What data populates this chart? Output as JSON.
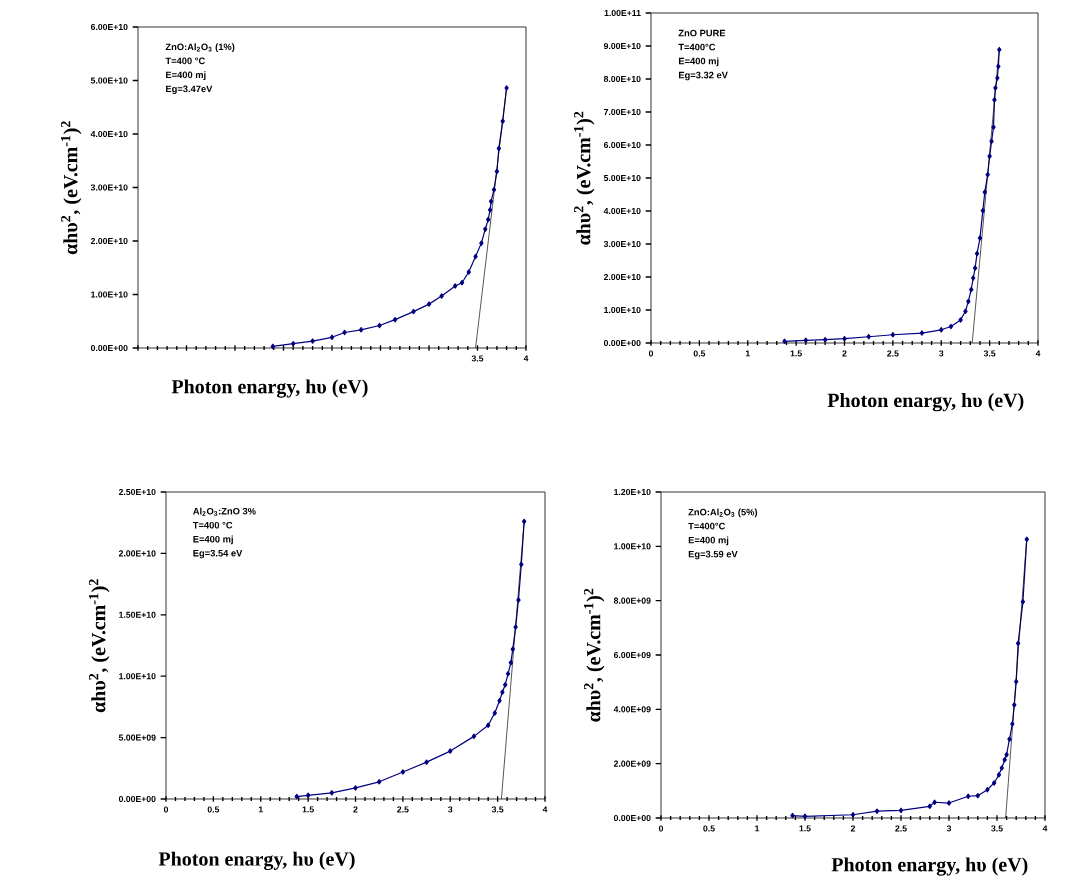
{
  "chart_data": [
    {
      "type": "line",
      "xlabel": "Photon enargy, hυ (eV)",
      "ylabel": "αhυ$^{2}$, (eV.cm$^{-1}$)$^{2}$",
      "marker": "diamond",
      "annotations": [
        "ZnO:Al$_{2}$O$_{3}$ (1%)",
        "T=400 °C",
        "E=400 mj",
        "Eg=3.47eV"
      ],
      "xlim": [
        0,
        4
      ],
      "ylim": [
        0,
        60000000000.0
      ],
      "xticks": [
        {
          "value": 0,
          "label": null
        },
        {
          "value": 0.5,
          "label": null
        },
        {
          "value": 1,
          "label": null
        },
        {
          "value": 1.5,
          "label": null
        },
        {
          "value": 2,
          "label": null
        },
        {
          "value": 2.5,
          "label": null
        },
        {
          "value": 3,
          "label": null
        },
        3.5,
        4
      ],
      "yticks": [
        {
          "value": 0,
          "label": "0.00E+00"
        },
        {
          "value": 10000000000.0,
          "label": "1.00E+10"
        },
        {
          "value": 20000000000.0,
          "label": "2.00E+10"
        },
        {
          "value": 30000000000.0,
          "label": "3.00E+10"
        },
        {
          "value": 40000000000.0,
          "label": "4.00E+10"
        },
        {
          "value": 50000000000.0,
          "label": "5.00E+10"
        },
        {
          "value": 60000000000.0,
          "label": "6.00E+10"
        }
      ],
      "series": [
        {
          "color": "#000080",
          "x": [
            1.39,
            1.6,
            1.8,
            2.0,
            2.13,
            2.3,
            2.49,
            2.65,
            2.84,
            3.0,
            3.13,
            3.27,
            3.34,
            3.41,
            3.48,
            3.54,
            3.58,
            3.61,
            3.63,
            3.64,
            3.67,
            3.7,
            3.72,
            3.76,
            3.8
          ],
          "values": [
            300000000.0,
            800000000.0,
            1300000000.0,
            2000000000.0,
            2900000000.0,
            3400000000.0,
            4200000000.0,
            5300000000.0,
            6800000000.0,
            8200000000.0,
            9700000000.0,
            11600000000.0,
            12200000000.0,
            14200000000.0,
            17100000000.0,
            19600000000.0,
            22200000000.0,
            24000000000.0,
            25800000000.0,
            27400000000.0,
            29600000000.0,
            33000000000.0,
            37300000000.0,
            42400000000.0,
            48600000000.0
          ]
        },
        {
          "type": "line",
          "color": "#000000",
          "marker": "none",
          "x": [
            3.48,
            3.8
          ],
          "values": [
            0,
            48700000000.0
          ]
        }
      ]
    },
    {
      "type": "line",
      "xlabel": "Photon enargy, hυ (eV)",
      "ylabel": "αhυ$^{2}$, (eV.cm$^{-1}$)$^{2}$",
      "marker": "diamond",
      "annotations": [
        "ZnO PURE",
        "T=400°C",
        "E=400 mj",
        "Eg=3.32 eV"
      ],
      "xlim": [
        0,
        4
      ],
      "ylim": [
        0,
        100000000000.0
      ],
      "xticks": [
        0,
        0.5,
        1,
        1.5,
        2,
        2.5,
        3,
        3.5,
        4
      ],
      "yticks": [
        {
          "value": 0,
          "label": "0.00E+00"
        },
        {
          "value": 10000000000.0,
          "label": "1.00E+10"
        },
        {
          "value": 20000000000.0,
          "label": "2.00E+10"
        },
        {
          "value": 30000000000.0,
          "label": "3.00E+10"
        },
        {
          "value": 40000000000.0,
          "label": "4.00E+10"
        },
        {
          "value": 50000000000.0,
          "label": "5.00E+10"
        },
        {
          "value": 60000000000.0,
          "label": "6.00E+10"
        },
        {
          "value": 70000000000.0,
          "label": "7.00E+10"
        },
        {
          "value": 80000000000.0,
          "label": "8.00E+10"
        },
        {
          "value": 90000000000.0,
          "label": "9.00E+10"
        },
        {
          "value": 100000000000.0,
          "label": "1.00E+11"
        }
      ],
      "series": [
        {
          "color": "#000080",
          "x": [
            1.38,
            1.6,
            1.8,
            2.0,
            2.25,
            2.5,
            2.8,
            3.0,
            3.1,
            3.2,
            3.25,
            3.28,
            3.31,
            3.33,
            3.35,
            3.37,
            3.4,
            3.43,
            3.45,
            3.48,
            3.5,
            3.52,
            3.54,
            3.55,
            3.56,
            3.58,
            3.59,
            3.6
          ],
          "values": [
            500000000.0,
            800000000.0,
            1000000000.0,
            1300000000.0,
            1900000000.0,
            2500000000.0,
            3000000000.0,
            4000000000.0,
            5000000000.0,
            7000000000.0,
            9600000000.0,
            12600000000.0,
            16200000000.0,
            19700000000.0,
            22700000000.0,
            27100000000.0,
            31800000000.0,
            40100000000.0,
            45700000000.0,
            51000000000.0,
            56600000000.0,
            61100000000.0,
            65400000000.0,
            73700000000.0,
            77300000000.0,
            80300000000.0,
            83800000000.0,
            88900000000.0
          ]
        },
        {
          "type": "line",
          "color": "#000000",
          "marker": "none",
          "x": [
            3.32,
            3.6
          ],
          "values": [
            0,
            89500000000.0
          ]
        }
      ]
    },
    {
      "type": "line",
      "xlabel": "Photon enargy, hυ (eV)",
      "ylabel": "αhυ$^{2}$, (eV.cm$^{-1}$)$^{2}$",
      "marker": "diamond",
      "annotations": [
        "Al$_{2}$O$_{3}$:ZnO 3%",
        "T=400 °C",
        "E=400 mj",
        "Eg=3.54 eV"
      ],
      "xlim": [
        0,
        4
      ],
      "ylim": [
        0,
        25000000000.0
      ],
      "xticks": [
        0,
        0.5,
        1,
        1.5,
        2,
        2.5,
        3,
        3.5,
        4
      ],
      "yticks": [
        {
          "value": 0,
          "label": "0.00E+00"
        },
        {
          "value": 5000000000.0,
          "label": "5.00E+09"
        },
        {
          "value": 10000000000.0,
          "label": "1.00E+10"
        },
        {
          "value": 15000000000.0,
          "label": "1.50E+10"
        },
        {
          "value": 20000000000.0,
          "label": "2.00E+10"
        },
        {
          "value": 25000000000.0,
          "label": "2.50E+10"
        }
      ],
      "series": [
        {
          "color": "#000080",
          "x": [
            1.38,
            1.5,
            1.75,
            2.0,
            2.25,
            2.5,
            2.75,
            3.0,
            3.25,
            3.4,
            3.47,
            3.52,
            3.55,
            3.58,
            3.61,
            3.64,
            3.66,
            3.69,
            3.72,
            3.75,
            3.78
          ],
          "values": [
            200000000.0,
            300000000.0,
            500000000.0,
            900000000.0,
            1400000000.0,
            2200000000.0,
            3000000000.0,
            3900000000.0,
            5100000000.0,
            6000000000.0,
            7000000000.0,
            8000000000.0,
            8700000000.0,
            9300000000.0,
            10200000000.0,
            11100000000.0,
            12200000000.0,
            14000000000.0,
            16200000000.0,
            19100000000.0,
            22600000000.0
          ]
        },
        {
          "type": "line",
          "color": "#000000",
          "marker": "none",
          "x": [
            3.54,
            3.78
          ],
          "values": [
            0,
            22600000000.0
          ]
        }
      ]
    },
    {
      "type": "line",
      "xlabel": "Photon enargy, hυ (eV)",
      "ylabel": "αhυ$^{2}$, (eV.cm$^{-1}$)$^{2}$",
      "marker": "diamond",
      "annotations": [
        "ZnO:Al$_{2}$O$_{3}$ (5%)",
        "T=400°C",
        "E=400 mj",
        "Eg=3.59 eV"
      ],
      "xlim": [
        0,
        4
      ],
      "ylim": [
        0,
        12000000000.0
      ],
      "xticks": [
        0,
        0.5,
        1,
        1.5,
        2,
        2.5,
        3,
        3.5,
        4
      ],
      "yticks": [
        {
          "value": 0,
          "label": "0.00E+00"
        },
        {
          "value": 2000000000.0,
          "label": "2.00E+09"
        },
        {
          "value": 4000000000.0,
          "label": "4.00E+09"
        },
        {
          "value": 6000000000.0,
          "label": "6.00E+09"
        },
        {
          "value": 8000000000.0,
          "label": "8.00E+09"
        },
        {
          "value": 10000000000.0,
          "label": "1.00E+10"
        },
        {
          "value": 12000000000.0,
          "label": "1.20E+10"
        }
      ],
      "series": [
        {
          "color": "#000080",
          "x": [
            1.37,
            1.5,
            2.0,
            2.25,
            2.5,
            2.8,
            2.85,
            3.0,
            3.2,
            3.3,
            3.4,
            3.47,
            3.52,
            3.55,
            3.58,
            3.6,
            3.63,
            3.66,
            3.68,
            3.7,
            3.72,
            3.77,
            3.81
          ],
          "values": [
            90000000.0,
            60000000.0,
            120000000.0,
            250000000.0,
            280000000.0,
            430000000.0,
            580000000.0,
            550000000.0,
            800000000.0,
            820000000.0,
            1040000000.0,
            1290000000.0,
            1590000000.0,
            1840000000.0,
            2140000000.0,
            2330000000.0,
            2900000000.0,
            3460000000.0,
            4160000000.0,
            5020000000.0,
            6430000000.0,
            7960000000.0,
            10260000000.0
          ]
        },
        {
          "type": "line",
          "color": "#000000",
          "marker": "none",
          "x": [
            3.59,
            3.81
          ],
          "values": [
            0,
            10300000000.0
          ]
        }
      ]
    }
  ]
}
